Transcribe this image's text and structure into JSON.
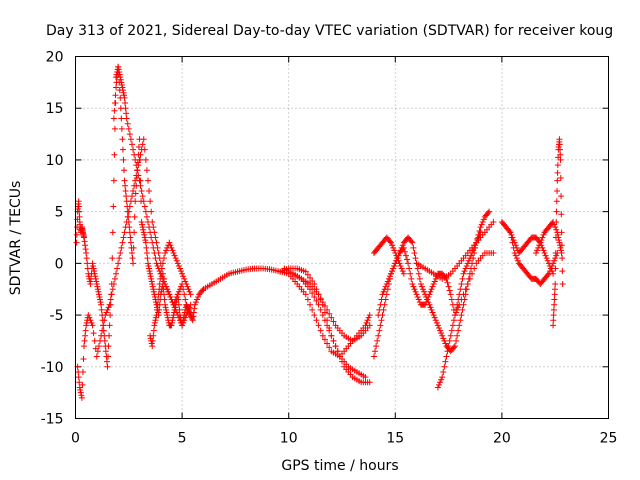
{
  "chart_data": {
    "type": "scatter",
    "title": "Day 313 of 2021, Sidereal Day-to-day VTEC variation (SDTVAR) for receiver koug",
    "xlabel": "GPS time / hours",
    "ylabel": "SDTVAR / TECUs",
    "xlim": [
      0,
      25
    ],
    "ylim": [
      -15,
      20
    ],
    "xticks": [
      0,
      5,
      10,
      15,
      20,
      25
    ],
    "yticks": [
      -15,
      -10,
      -5,
      0,
      5,
      10,
      15,
      20
    ],
    "xtick_labels": [
      "0",
      "5",
      "10",
      "15",
      "20",
      "25"
    ],
    "ytick_labels": [
      "-15",
      "-10",
      "-5",
      "0",
      "5",
      "10",
      "15",
      "20"
    ],
    "grid": true,
    "marker": "plus",
    "color": "#ff0000",
    "series": [
      {
        "name": "s1",
        "x": [
          0.05,
          0.1,
          0.15,
          0.2,
          0.25,
          0.3,
          0.35,
          0.4,
          0.5,
          0.6,
          0.7,
          0.8,
          0.9,
          1.0,
          1.1,
          1.2,
          1.3,
          1.4,
          1.5,
          1.6,
          1.7,
          1.8,
          1.9,
          2.0,
          2.1,
          2.2,
          2.3,
          2.4,
          2.5,
          2.6,
          2.7,
          2.8,
          2.9,
          3.0,
          3.1,
          3.2,
          3.3,
          3.4,
          3.5,
          3.6,
          3.7,
          3.8,
          3.9,
          4.0,
          4.1,
          4.2,
          4.3,
          4.4,
          4.5,
          4.6,
          4.7,
          4.8,
          4.9,
          5.0,
          5.1,
          5.2,
          5.3,
          5.4,
          5.5,
          5.6,
          5.8,
          6.0
        ],
        "y": [
          2,
          5,
          6,
          4,
          3,
          3.5,
          3,
          2.5,
          1,
          -1,
          -2,
          0,
          -1,
          -2,
          -3,
          -4,
          -6,
          -8,
          -10,
          -6,
          -2,
          8,
          18,
          19,
          16,
          12,
          8,
          6,
          4,
          2,
          0,
          6,
          9,
          12,
          4,
          3,
          2,
          0,
          -1,
          -2,
          -3,
          -4,
          -5,
          -3,
          -2,
          -4,
          -5,
          -6,
          -6,
          -5,
          -4,
          -3,
          -5,
          -6,
          -5,
          -4,
          -4.5,
          -5,
          -5.5,
          -4,
          -3,
          -2.5
        ]
      },
      {
        "name": "s2",
        "x": [
          0.1,
          0.2,
          0.3,
          0.4,
          0.5,
          0.6,
          0.8,
          1.0,
          1.2,
          1.4,
          1.6,
          1.8,
          2.0,
          2.2,
          2.4,
          2.6,
          2.8,
          3.0,
          3.2,
          3.4,
          3.6,
          3.8,
          4.0,
          4.2,
          4.4,
          4.6,
          4.8,
          5.0,
          5.2,
          5.4
        ],
        "y": [
          -10,
          -12,
          -13,
          -8,
          -6,
          -5,
          -6,
          -9,
          -7,
          -5,
          -4,
          -2,
          0,
          2,
          4,
          6,
          8,
          10,
          12,
          8,
          4,
          2,
          0,
          -2,
          -3,
          -4,
          -3,
          -2,
          -4,
          -5
        ]
      },
      {
        "name": "s3",
        "x": [
          1.8,
          1.9,
          2.0,
          2.1,
          2.2,
          2.3,
          2.4,
          2.6,
          2.8,
          3.0,
          3.2,
          3.4,
          3.6,
          3.8,
          4.0,
          4.2,
          4.4,
          4.6,
          4.8,
          5.0,
          5.2,
          5.4
        ],
        "y": [
          14,
          17,
          19,
          18,
          17,
          16,
          14,
          12,
          10,
          8,
          6,
          4,
          2,
          0,
          -1,
          -2,
          -3,
          -4,
          -5,
          -6,
          -5,
          -4
        ]
      },
      {
        "name": "s4",
        "x": [
          3.5,
          3.6,
          3.7,
          3.8,
          3.9,
          4.0,
          4.2,
          4.4,
          4.6,
          4.8,
          5.0,
          5.2,
          5.4
        ],
        "y": [
          -7,
          -8,
          -6,
          -5,
          -3,
          -1,
          1,
          2,
          1,
          0,
          -1,
          -2,
          -3
        ]
      },
      {
        "name": "s5",
        "x": [
          6.0,
          6.4,
          6.8,
          7.2,
          7.6,
          8.0,
          8.4,
          8.8,
          9.2,
          9.6,
          10.0,
          10.4,
          10.8,
          11.2,
          11.6,
          12.0,
          12.4,
          12.8,
          13.2,
          13.6
        ],
        "y": [
          -2.5,
          -2,
          -1.5,
          -1,
          -0.8,
          -0.6,
          -0.5,
          -0.5,
          -0.6,
          -0.8,
          -0.5,
          -0.5,
          -0.8,
          -2,
          -4,
          -7,
          -9,
          -10,
          -10.5,
          -11
        ]
      },
      {
        "name": "s6",
        "x": [
          9.8,
          10.2,
          10.6,
          11.0,
          11.4,
          11.8,
          12.2,
          12.6,
          13.0,
          13.4,
          13.8
        ],
        "y": [
          -0.5,
          -1,
          -1.5,
          -2.5,
          -4,
          -6,
          -8,
          -10,
          -11,
          -11.5,
          -11.5
        ]
      },
      {
        "name": "s7",
        "x": [
          9.6,
          10.0,
          10.4,
          10.8,
          11.2,
          11.6,
          12.0,
          12.4,
          12.8,
          13.2,
          13.6,
          13.8
        ],
        "y": [
          -0.8,
          -1,
          -2,
          -3,
          -5,
          -7,
          -8.5,
          -9,
          -8,
          -7,
          -6,
          -5
        ]
      },
      {
        "name": "s8",
        "x": [
          10.2,
          10.6,
          11.0,
          11.4,
          11.8,
          12.2,
          12.6,
          13.0,
          13.4,
          13.8
        ],
        "y": [
          -1,
          -1.5,
          -2,
          -3,
          -4.5,
          -6,
          -7,
          -7.5,
          -7,
          -6
        ]
      },
      {
        "name": "s9",
        "x": [
          14.0,
          14.2,
          14.4,
          14.6,
          14.8,
          15.0,
          15.2,
          15.4,
          15.6,
          15.8,
          16.0,
          16.2,
          16.4,
          16.6,
          16.8,
          17.0,
          17.2,
          17.4,
          17.6,
          17.8,
          18.0,
          18.2,
          18.4,
          18.6,
          18.8,
          19.0,
          19.2,
          19.4
        ],
        "y": [
          -9,
          -7,
          -5,
          -3,
          -1,
          0,
          1,
          2,
          2.5,
          2,
          0,
          -2,
          -3,
          -4,
          -5,
          -6,
          -7,
          -8,
          -8.5,
          -8,
          -6,
          -4,
          -2,
          0,
          2,
          3.5,
          4.5,
          5
        ]
      },
      {
        "name": "s10",
        "x": [
          14.2,
          14.4,
          14.6,
          14.8,
          15.0,
          15.2,
          15.4,
          15.6,
          15.8,
          16.0,
          16.2,
          16.4,
          16.6,
          16.8,
          17.0,
          17.2,
          17.4,
          17.6,
          17.8,
          18.0,
          18.4,
          18.8,
          19.2,
          19.6
        ],
        "y": [
          -5,
          -3,
          -2,
          -1,
          0,
          1,
          1.5,
          0,
          -2,
          -3,
          -4,
          -4,
          -3,
          -2,
          -1,
          -1,
          -1.5,
          -3,
          -5,
          -4,
          -2,
          0,
          1,
          1
        ]
      },
      {
        "name": "s11",
        "x": [
          14.0,
          14.2,
          14.4,
          14.6,
          14.8,
          15.0,
          15.2,
          15.4
        ],
        "y": [
          1,
          1.5,
          2,
          2.5,
          2,
          1,
          0,
          -1
        ]
      },
      {
        "name": "s12",
        "x": [
          16.0,
          16.4,
          16.8,
          17.2,
          17.6,
          18.0,
          18.4,
          18.8,
          19.2,
          19.6
        ],
        "y": [
          0,
          -0.5,
          -1,
          -1.5,
          -1,
          0,
          1,
          2,
          3,
          4
        ]
      },
      {
        "name": "s13",
        "x": [
          17.0,
          17.2,
          17.4,
          17.6,
          17.8,
          18.0,
          18.2,
          18.4,
          18.6,
          18.8,
          19.0
        ],
        "y": [
          -12,
          -11,
          -9,
          -7,
          -5,
          -3,
          -1,
          0,
          1,
          2,
          3
        ]
      },
      {
        "name": "s14",
        "x": [
          20.0,
          20.2,
          20.4,
          20.6,
          20.8,
          21.0,
          21.2,
          21.4,
          21.6,
          21.8,
          22.0,
          22.2,
          22.4,
          22.6
        ],
        "y": [
          4,
          3.5,
          3,
          1,
          0,
          -0.5,
          -1,
          -1.5,
          -1.5,
          -2,
          -1.5,
          -1,
          0,
          1
        ]
      },
      {
        "name": "s15",
        "x": [
          20.4,
          20.6,
          20.8,
          21.0,
          21.2,
          21.4,
          21.6,
          21.8,
          22.0,
          22.2,
          22.4
        ],
        "y": [
          3,
          2,
          1,
          1.5,
          2,
          2.5,
          2.5,
          2,
          1,
          0,
          -1
        ]
      },
      {
        "name": "s16",
        "x": [
          21.6,
          21.8,
          22.0,
          22.2,
          22.4,
          22.6,
          22.7,
          22.8
        ],
        "y": [
          1,
          2,
          3,
          3.5,
          4,
          3,
          2,
          1
        ]
      },
      {
        "name": "s17",
        "x": [
          22.4,
          22.45,
          22.5,
          22.55,
          22.6,
          22.65,
          22.7,
          22.75,
          22.8,
          22.85
        ],
        "y": [
          -6,
          -4,
          -2,
          4,
          8,
          11,
          12,
          10,
          3,
          -2
        ]
      }
    ]
  }
}
